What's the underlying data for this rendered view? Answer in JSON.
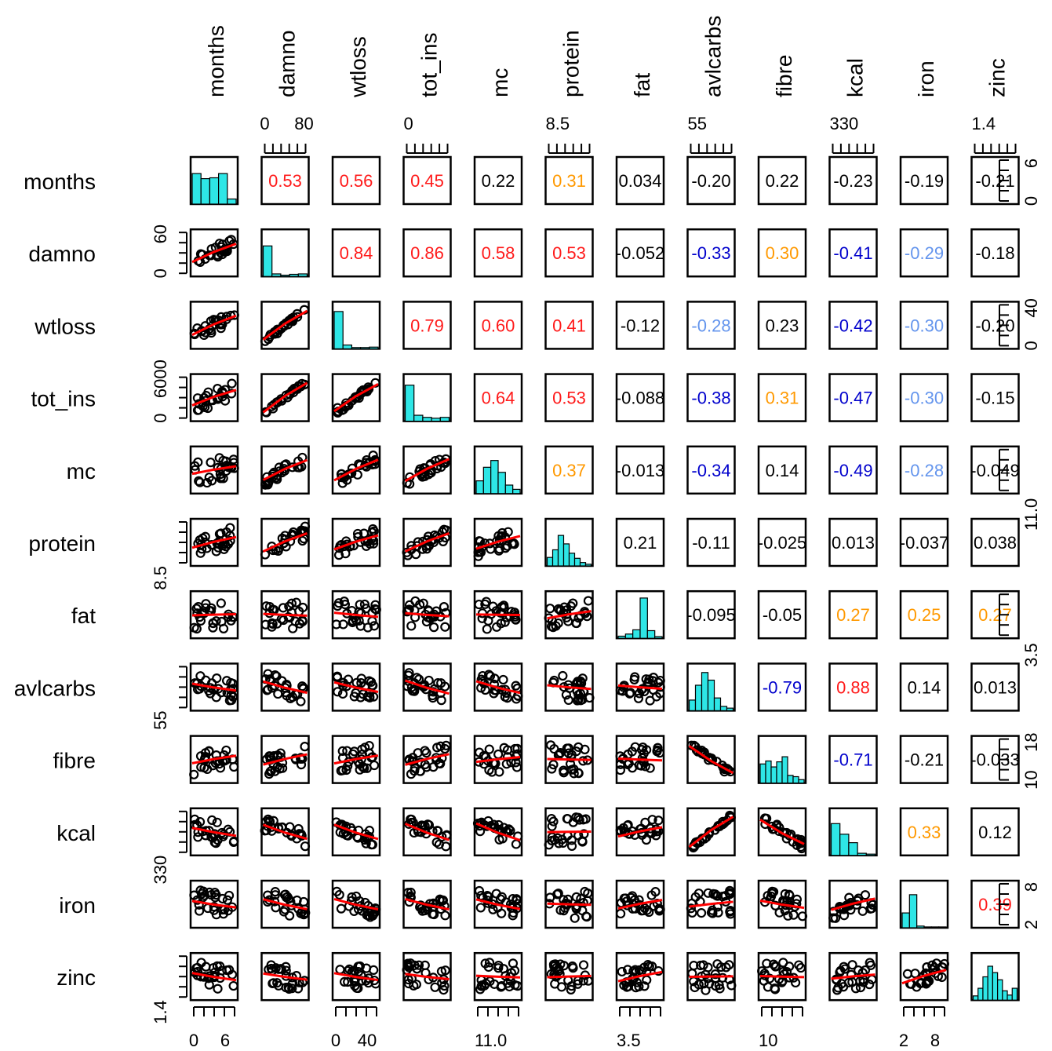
{
  "chart_data": {
    "type": "scatter",
    "variables": [
      "months",
      "damno",
      "wtloss",
      "tot_ins",
      "mc",
      "protein",
      "fat",
      "avlcarbs",
      "fibre",
      "kcal",
      "iron",
      "zinc"
    ],
    "correlations": [
      [
        "months",
        "damno",
        "0.53",
        "#ff1a1a"
      ],
      [
        "months",
        "wtloss",
        "0.56",
        "#ff1a1a"
      ],
      [
        "months",
        "tot_ins",
        "0.45",
        "#ff1a1a"
      ],
      [
        "months",
        "mc",
        "0.22",
        "#000000"
      ],
      [
        "months",
        "protein",
        "0.31",
        "#ff9900"
      ],
      [
        "months",
        "fat",
        "0.034",
        "#000000"
      ],
      [
        "months",
        "avlcarbs",
        "-0.20",
        "#000000"
      ],
      [
        "months",
        "fibre",
        "0.22",
        "#000000"
      ],
      [
        "months",
        "kcal",
        "-0.23",
        "#000000"
      ],
      [
        "months",
        "iron",
        "-0.19",
        "#000000"
      ],
      [
        "months",
        "zinc",
        "-0.21",
        "#000000"
      ],
      [
        "damno",
        "wtloss",
        "0.84",
        "#ff1a1a"
      ],
      [
        "damno",
        "tot_ins",
        "0.86",
        "#ff1a1a"
      ],
      [
        "damno",
        "mc",
        "0.58",
        "#ff1a1a"
      ],
      [
        "damno",
        "protein",
        "0.53",
        "#ff1a1a"
      ],
      [
        "damno",
        "fat",
        "-0.052",
        "#000000"
      ],
      [
        "damno",
        "avlcarbs",
        "-0.33",
        "#0000cc"
      ],
      [
        "damno",
        "fibre",
        "0.30",
        "#ff9900"
      ],
      [
        "damno",
        "kcal",
        "-0.41",
        "#0000cc"
      ],
      [
        "damno",
        "iron",
        "-0.29",
        "#6495ed"
      ],
      [
        "damno",
        "zinc",
        "-0.18",
        "#000000"
      ],
      [
        "wtloss",
        "tot_ins",
        "0.79",
        "#ff1a1a"
      ],
      [
        "wtloss",
        "mc",
        "0.60",
        "#ff1a1a"
      ],
      [
        "wtloss",
        "protein",
        "0.41",
        "#ff1a1a"
      ],
      [
        "wtloss",
        "fat",
        "-0.12",
        "#000000"
      ],
      [
        "wtloss",
        "avlcarbs",
        "-0.28",
        "#6495ed"
      ],
      [
        "wtloss",
        "fibre",
        "0.23",
        "#000000"
      ],
      [
        "wtloss",
        "kcal",
        "-0.42",
        "#0000cc"
      ],
      [
        "wtloss",
        "iron",
        "-0.30",
        "#6495ed"
      ],
      [
        "wtloss",
        "zinc",
        "-0.20",
        "#000000"
      ],
      [
        "tot_ins",
        "mc",
        "0.64",
        "#ff1a1a"
      ],
      [
        "tot_ins",
        "protein",
        "0.53",
        "#ff1a1a"
      ],
      [
        "tot_ins",
        "fat",
        "-0.088",
        "#000000"
      ],
      [
        "tot_ins",
        "avlcarbs",
        "-0.38",
        "#0000cc"
      ],
      [
        "tot_ins",
        "fibre",
        "0.31",
        "#ff9900"
      ],
      [
        "tot_ins",
        "kcal",
        "-0.47",
        "#0000cc"
      ],
      [
        "tot_ins",
        "iron",
        "-0.30",
        "#6495ed"
      ],
      [
        "tot_ins",
        "zinc",
        "-0.15",
        "#000000"
      ],
      [
        "mc",
        "protein",
        "0.37",
        "#ff9900"
      ],
      [
        "mc",
        "fat",
        "-0.013",
        "#000000"
      ],
      [
        "mc",
        "avlcarbs",
        "-0.34",
        "#0000cc"
      ],
      [
        "mc",
        "fibre",
        "0.14",
        "#000000"
      ],
      [
        "mc",
        "kcal",
        "-0.49",
        "#0000cc"
      ],
      [
        "mc",
        "iron",
        "-0.28",
        "#6495ed"
      ],
      [
        "mc",
        "zinc",
        "-0.049",
        "#000000"
      ],
      [
        "protein",
        "fat",
        "0.21",
        "#000000"
      ],
      [
        "protein",
        "avlcarbs",
        "-0.11",
        "#000000"
      ],
      [
        "protein",
        "fibre",
        "-0.025",
        "#000000"
      ],
      [
        "protein",
        "kcal",
        "0.013",
        "#000000"
      ],
      [
        "protein",
        "iron",
        "-0.037",
        "#000000"
      ],
      [
        "protein",
        "zinc",
        "0.038",
        "#000000"
      ],
      [
        "fat",
        "avlcarbs",
        "-0.095",
        "#000000"
      ],
      [
        "fat",
        "fibre",
        "-0.05",
        "#000000"
      ],
      [
        "fat",
        "kcal",
        "0.27",
        "#ff9900"
      ],
      [
        "fat",
        "iron",
        "0.25",
        "#ff9900"
      ],
      [
        "fat",
        "zinc",
        "0.27",
        "#ff9900"
      ],
      [
        "avlcarbs",
        "fibre",
        "-0.79",
        "#0000cc"
      ],
      [
        "avlcarbs",
        "kcal",
        "0.88",
        "#ff1a1a"
      ],
      [
        "avlcarbs",
        "iron",
        "0.14",
        "#000000"
      ],
      [
        "avlcarbs",
        "zinc",
        "0.013",
        "#000000"
      ],
      [
        "fibre",
        "kcal",
        "-0.71",
        "#0000cc"
      ],
      [
        "fibre",
        "iron",
        "-0.21",
        "#000000"
      ],
      [
        "fibre",
        "zinc",
        "-0.033",
        "#000000"
      ],
      [
        "kcal",
        "iron",
        "0.33",
        "#ff9900"
      ],
      [
        "kcal",
        "zinc",
        "0.12",
        "#000000"
      ],
      [
        "iron",
        "zinc",
        "0.39",
        "#ff1a1a"
      ]
    ],
    "histograms": [
      [
        0.72,
        0.6,
        0.62,
        0.72,
        0.12
      ],
      [
        0.72,
        0.06,
        0.03,
        0.05,
        0.06
      ],
      [
        0.88,
        0.09,
        0.03,
        0.03,
        0.04
      ],
      [
        0.85,
        0.14,
        0.09,
        0.07,
        0.09
      ],
      [
        0.3,
        0.62,
        0.78,
        0.5,
        0.2,
        0.1
      ],
      [
        0.2,
        0.38,
        0.72,
        0.52,
        0.3,
        0.18,
        0.08,
        0.04
      ],
      [
        0.05,
        0.1,
        0.2,
        0.95,
        0.18,
        0.04
      ],
      [
        0.25,
        0.6,
        0.9,
        0.72,
        0.3,
        0.1,
        0.06
      ],
      [
        0.45,
        0.52,
        0.38,
        0.5,
        0.62,
        0.18,
        0.15,
        0.08
      ],
      [
        0.75,
        0.5,
        0.3,
        0.05,
        0.03
      ],
      [
        0.35,
        0.78,
        0.04,
        0.02,
        0.02,
        0.02
      ],
      [
        0.1,
        0.28,
        0.55,
        0.8,
        0.65,
        0.48,
        0.22,
        0.12,
        0.28
      ]
    ],
    "tick_labels": {
      "top": [
        {
          "col": 1,
          "labels": [
            "0",
            "80"
          ]
        },
        {
          "col": 3,
          "labels": [
            "0"
          ]
        },
        {
          "col": 5,
          "labels": [
            "8.5"
          ]
        },
        {
          "col": 7,
          "labels": [
            "55"
          ]
        },
        {
          "col": 9,
          "labels": [
            "330"
          ]
        },
        {
          "col": 11,
          "labels": [
            "1.4"
          ]
        }
      ],
      "bottom": [
        {
          "col": 0,
          "labels": [
            "0",
            "6"
          ]
        },
        {
          "col": 2,
          "labels": [
            "0",
            "40"
          ]
        },
        {
          "col": 4,
          "labels": [
            "11.0"
          ]
        },
        {
          "col": 6,
          "labels": [
            "3.5"
          ]
        },
        {
          "col": 8,
          "labels": [
            "10"
          ]
        },
        {
          "col": 10,
          "labels": [
            "2",
            "8"
          ]
        }
      ],
      "left": [
        {
          "row": 1,
          "labels": [
            "0",
            "60"
          ]
        },
        {
          "row": 3,
          "labels": [
            "0",
            "6000"
          ]
        },
        {
          "row": 5,
          "labels": [
            "8.5"
          ]
        },
        {
          "row": 7,
          "labels": [
            "55"
          ]
        },
        {
          "row": 9,
          "labels": [
            "330"
          ]
        },
        {
          "row": 11,
          "labels": [
            "1.4"
          ]
        }
      ],
      "right": [
        {
          "row": 0,
          "labels": [
            "0",
            "6"
          ]
        },
        {
          "row": 2,
          "labels": [
            "0",
            "40"
          ]
        },
        {
          "row": 4,
          "labels": [
            "11.0"
          ]
        },
        {
          "row": 6,
          "labels": [
            "3.5"
          ]
        },
        {
          "row": 8,
          "labels": [
            "10",
            "18"
          ]
        },
        {
          "row": 10,
          "labels": [
            "2",
            "8"
          ]
        }
      ]
    },
    "colors": {
      "histogram_fill": "#2ee6e6",
      "smooth_line": "#ff0000",
      "points": "#000000",
      "strong_positive": "#ff1a1a",
      "moderate_positive": "#ff9900",
      "strong_negative": "#0000cc",
      "moderate_negative": "#6495ed",
      "weak": "#000000"
    }
  }
}
